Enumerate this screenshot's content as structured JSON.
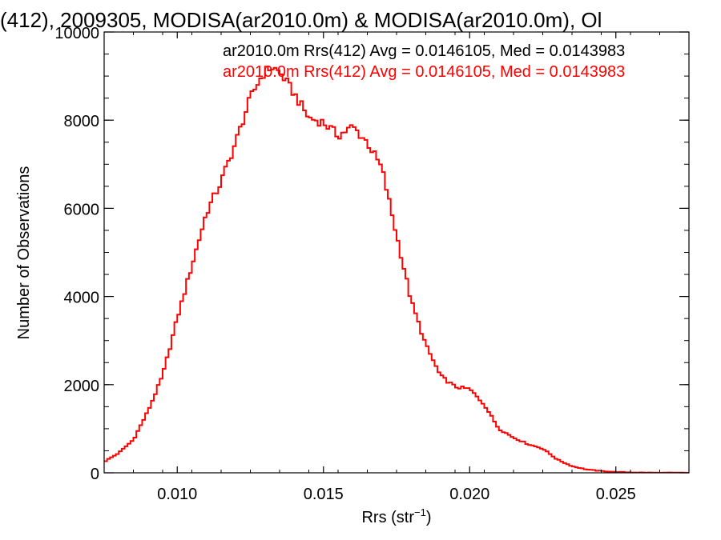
{
  "chart_data": {
    "type": "histogram",
    "title": "(412), 2009305, MODISA(ar2010.0m) & MODISA(ar2010.0m), Ol",
    "xlabel_main": "Rrs (str",
    "xlabel_sup": "−1",
    "xlabel_end": ")",
    "ylabel": "Number of Observations",
    "xlim": [
      0.0075,
      0.0275
    ],
    "ylim": [
      0,
      10000
    ],
    "x_ticks": [
      {
        "value": 0.01,
        "label": "0.010"
      },
      {
        "value": 0.015,
        "label": "0.015"
      },
      {
        "value": 0.02,
        "label": "0.020"
      },
      {
        "value": 0.025,
        "label": "0.025"
      }
    ],
    "y_ticks": [
      {
        "value": 0,
        "label": "0"
      },
      {
        "value": 2000,
        "label": "2000"
      },
      {
        "value": 4000,
        "label": "4000"
      },
      {
        "value": 6000,
        "label": "6000"
      },
      {
        "value": 8000,
        "label": "8000"
      },
      {
        "value": 10000,
        "label": "10000"
      }
    ],
    "annotations": [
      {
        "text": "ar2010.0m Rrs(412) Avg = 0.0146105, Med = 0.0143983",
        "color": "#000000"
      },
      {
        "text": "ar2010.0m Rrs(412) Avg = 0.0146105, Med = 0.0143983",
        "color": "#ff0000"
      }
    ],
    "series": [
      {
        "color": "#ff0000",
        "x": [
          0.0075,
          0.008,
          0.0085,
          0.009,
          0.0095,
          0.01,
          0.0105,
          0.011,
          0.0115,
          0.012,
          0.0125,
          0.0128,
          0.013,
          0.0132,
          0.0134,
          0.0136,
          0.014,
          0.0145,
          0.015,
          0.0155,
          0.016,
          0.0165,
          0.017,
          0.0175,
          0.018,
          0.0185,
          0.019,
          0.0195,
          0.02,
          0.0205,
          0.021,
          0.0215,
          0.022,
          0.0225,
          0.023,
          0.0235,
          0.024,
          0.0245,
          0.025,
          0.0255,
          0.026,
          0.0265,
          0.027,
          0.0275
        ],
        "y": [
          250,
          450,
          750,
          1400,
          2200,
          3500,
          4700,
          5900,
          6600,
          7500,
          8500,
          8900,
          9100,
          9200,
          9150,
          9000,
          8600,
          8050,
          7950,
          7650,
          7850,
          7500,
          6900,
          5400,
          3900,
          2900,
          2200,
          1950,
          1900,
          1550,
          1000,
          800,
          650,
          550,
          300,
          150,
          75,
          40,
          20,
          10,
          5,
          3,
          2,
          1
        ]
      }
    ]
  }
}
